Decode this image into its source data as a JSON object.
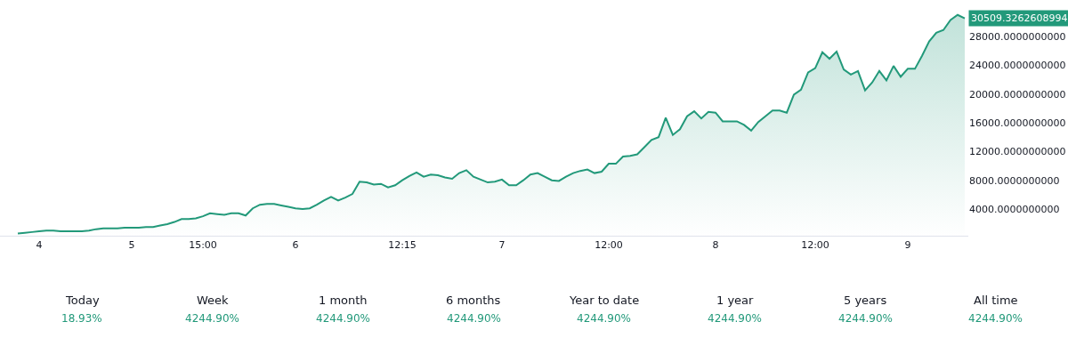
{
  "chart_data": {
    "type": "area",
    "categories": [
      null,
      null,
      null,
      "4",
      null,
      null,
      null,
      null,
      null,
      null,
      null,
      null,
      null,
      null,
      null,
      null,
      "5",
      null,
      null,
      null,
      null,
      null,
      null,
      null,
      null,
      null,
      "15:00",
      null,
      null,
      null,
      null,
      null,
      null,
      null,
      null,
      null,
      null,
      null,
      null,
      "6",
      null,
      null,
      null,
      null,
      null,
      null,
      null,
      null,
      null,
      null,
      null,
      null,
      null,
      null,
      "12:15",
      null,
      null,
      null,
      null,
      null,
      null,
      null,
      null,
      null,
      null,
      null,
      null,
      null,
      "7",
      null,
      null,
      null,
      null,
      null,
      null,
      null,
      null,
      null,
      null,
      null,
      null,
      null,
      null,
      "12:00",
      null,
      null,
      null,
      null,
      null,
      null,
      null,
      null,
      null,
      null,
      null,
      null,
      null,
      null,
      "8",
      null,
      null,
      null,
      null,
      null,
      null,
      null,
      null,
      null,
      null,
      null,
      null,
      null,
      "12:00",
      null,
      null,
      null,
      null,
      null,
      null,
      null,
      null,
      null,
      null,
      null,
      null,
      "9",
      null,
      null,
      null,
      null,
      null,
      null,
      null,
      null
    ],
    "series": [
      {
        "color": "#22997a",
        "values": [
          600,
          700,
          800,
          900,
          1000,
          1000,
          900,
          900,
          900,
          900,
          1000,
          1200,
          1300,
          1300,
          1300,
          1400,
          1400,
          1400,
          1500,
          1500,
          1700,
          1900,
          2200,
          2600,
          2600,
          2700,
          3000,
          3400,
          3300,
          3200,
          3400,
          3400,
          3100,
          4100,
          4600,
          4700,
          4700,
          4500,
          4300,
          4100,
          4000,
          4100,
          4600,
          5200,
          5700,
          5200,
          5600,
          6100,
          7800,
          7700,
          7400,
          7500,
          7000,
          7300,
          8000,
          8600,
          9100,
          8500,
          8800,
          8700,
          8400,
          8200,
          9000,
          9400,
          8500,
          8100,
          7700,
          7800,
          8100,
          7300,
          7300,
          8000,
          8800,
          9000,
          8500,
          8000,
          7900,
          8500,
          9000,
          9300,
          9500,
          9000,
          9200,
          10300,
          10300,
          11300,
          11400,
          11600,
          12600,
          13600,
          14000,
          16700,
          14300,
          15100,
          16900,
          17600,
          16600,
          17500,
          17400,
          16200,
          16200,
          16200,
          15700,
          14900,
          16100,
          16900,
          17700,
          17700,
          17400,
          19900,
          20600,
          23000,
          23600,
          25800,
          24900,
          25900,
          23400,
          22700,
          23200,
          20500,
          21600,
          23200,
          21900,
          23900,
          22400,
          23500,
          23500,
          25300,
          27300,
          28500,
          28900,
          30300,
          31000,
          30509
        ]
      }
    ],
    "ylim": [
      290,
      33070
    ],
    "yticks": [
      {
        "value": 4000,
        "label": "4000.0000000000"
      },
      {
        "value": 8000,
        "label": "8000.0000000000"
      },
      {
        "value": 12000,
        "label": "12000.0000000000"
      },
      {
        "value": 16000,
        "label": "16000.0000000000"
      },
      {
        "value": 20000,
        "label": "20000.0000000000"
      },
      {
        "value": 24000,
        "label": "24000.0000000000"
      },
      {
        "value": 28000,
        "label": "28000.0000000000"
      }
    ],
    "annotations": [
      "30509.3262608994",
      "Today",
      "18.93%",
      "Week",
      "4244.90%",
      "1 month",
      "4244.90%",
      "6 months",
      "4244.90%",
      "Year to date",
      "4244.90%",
      "1 year",
      "4244.90%",
      "5 years",
      "4244.90%",
      "All time",
      "4244.90%"
    ]
  }
}
